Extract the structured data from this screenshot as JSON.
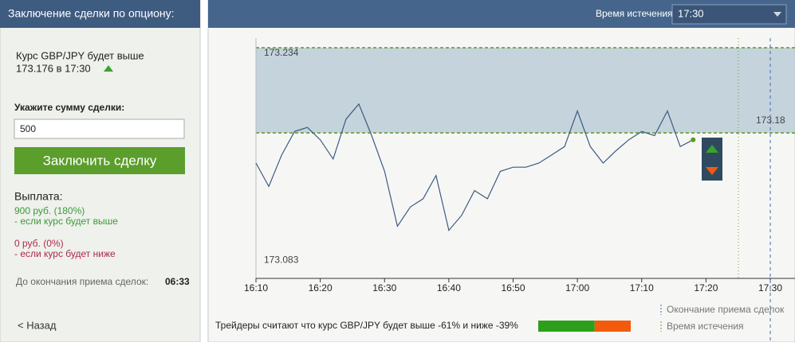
{
  "panel": {
    "title": "Заключение сделки по опциону:",
    "forecast_line1": "Курс GBP/JPY будет выше",
    "forecast_line2": "173.176 в 17:30",
    "amount_label": "Укажите сумму сделки:",
    "amount": "500",
    "button": "Заключить сделку",
    "payout_title": "Выплата:",
    "win_amount": "900 руб. (180%)",
    "win_condition": "- если курс будет выше",
    "lose_amount": "0 руб. (0%)",
    "lose_condition": "- если курс будет ниже",
    "countdown_label": "До окончания приема сделок:",
    "countdown": "06:33",
    "back": "< Назад"
  },
  "header": {
    "expiry_label": "Время истечения",
    "expiry_value": "17:30"
  },
  "chart_data": {
    "type": "line",
    "x": [
      "16:10",
      "16:12",
      "16:14",
      "16:16",
      "16:18",
      "16:20",
      "16:22",
      "16:24",
      "16:26",
      "16:28",
      "16:30",
      "16:32",
      "16:34",
      "16:36",
      "16:38",
      "16:40",
      "16:42",
      "16:44",
      "16:46",
      "16:48",
      "16:50",
      "16:52",
      "16:54",
      "16:56",
      "16:58",
      "17:00",
      "17:02",
      "17:04",
      "17:06",
      "17:08",
      "17:10",
      "17:12",
      "17:14",
      "17:16",
      "17:18"
    ],
    "values": [
      173.154,
      173.137,
      173.16,
      173.177,
      173.18,
      173.171,
      173.157,
      173.186,
      173.197,
      173.174,
      173.148,
      173.108,
      173.122,
      173.128,
      173.145,
      173.105,
      173.116,
      173.134,
      173.128,
      173.148,
      173.151,
      173.151,
      173.154,
      173.16,
      173.166,
      173.192,
      173.166,
      173.154,
      173.163,
      173.171,
      173.177,
      173.174,
      173.192,
      173.166,
      173.171
    ],
    "color": "#3d5a80",
    "ylim": [
      173.07,
      173.245
    ],
    "yticks": [
      173.083,
      173.234
    ],
    "xticks": [
      "16:10",
      "16:20",
      "16:30",
      "16:40",
      "16:50",
      "17:00",
      "17:10",
      "17:20",
      "17:30"
    ],
    "strike": {
      "value": 173.176,
      "label": "173.18"
    }
  },
  "legend": [
    "Окончание приема сделок",
    "Время истечения"
  ],
  "sentiment": {
    "text": "Трейдеры считают что курс GBP/JPY будет выше -61% и ниже -39%",
    "bar_up": 61,
    "bar_down": 39
  }
}
